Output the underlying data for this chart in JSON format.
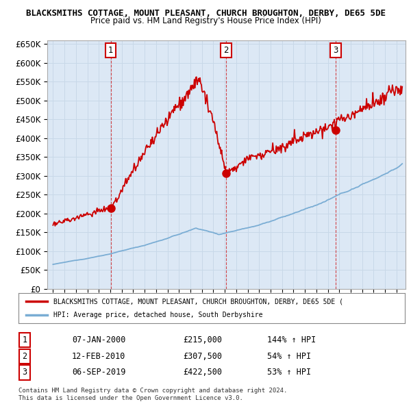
{
  "title": "BLACKSMITHS COTTAGE, MOUNT PLEASANT, CHURCH BROUGHTON, DERBY, DE65 5DE",
  "subtitle": "Price paid vs. HM Land Registry's House Price Index (HPI)",
  "legend_line1": "BLACKSMITHS COTTAGE, MOUNT PLEASANT, CHURCH BROUGHTON, DERBY, DE65 5DE (",
  "legend_line2": "HPI: Average price, detached house, South Derbyshire",
  "sale_points": [
    {
      "num": 1,
      "date_x": 2000.04,
      "price": 215000,
      "label": "07-JAN-2000",
      "amount": "£215,000",
      "pct": "144% ↑ HPI"
    },
    {
      "num": 2,
      "date_x": 2010.12,
      "price": 307500,
      "label": "12-FEB-2010",
      "amount": "£307,500",
      "pct": "54% ↑ HPI"
    },
    {
      "num": 3,
      "date_x": 2019.68,
      "price": 422500,
      "label": "06-SEP-2019",
      "amount": "£422,500",
      "pct": "53% ↑ HPI"
    }
  ],
  "footer1": "Contains HM Land Registry data © Crown copyright and database right 2024.",
  "footer2": "This data is licensed under the Open Government Licence v3.0.",
  "ylim": [
    0,
    660000
  ],
  "xlim": [
    1994.5,
    2025.8
  ],
  "hpi_color": "#7aadd4",
  "price_color": "#cc0000",
  "grid_color": "#c8d8e8",
  "background_color": "#ffffff",
  "plot_bg_color": "#dce8f5"
}
